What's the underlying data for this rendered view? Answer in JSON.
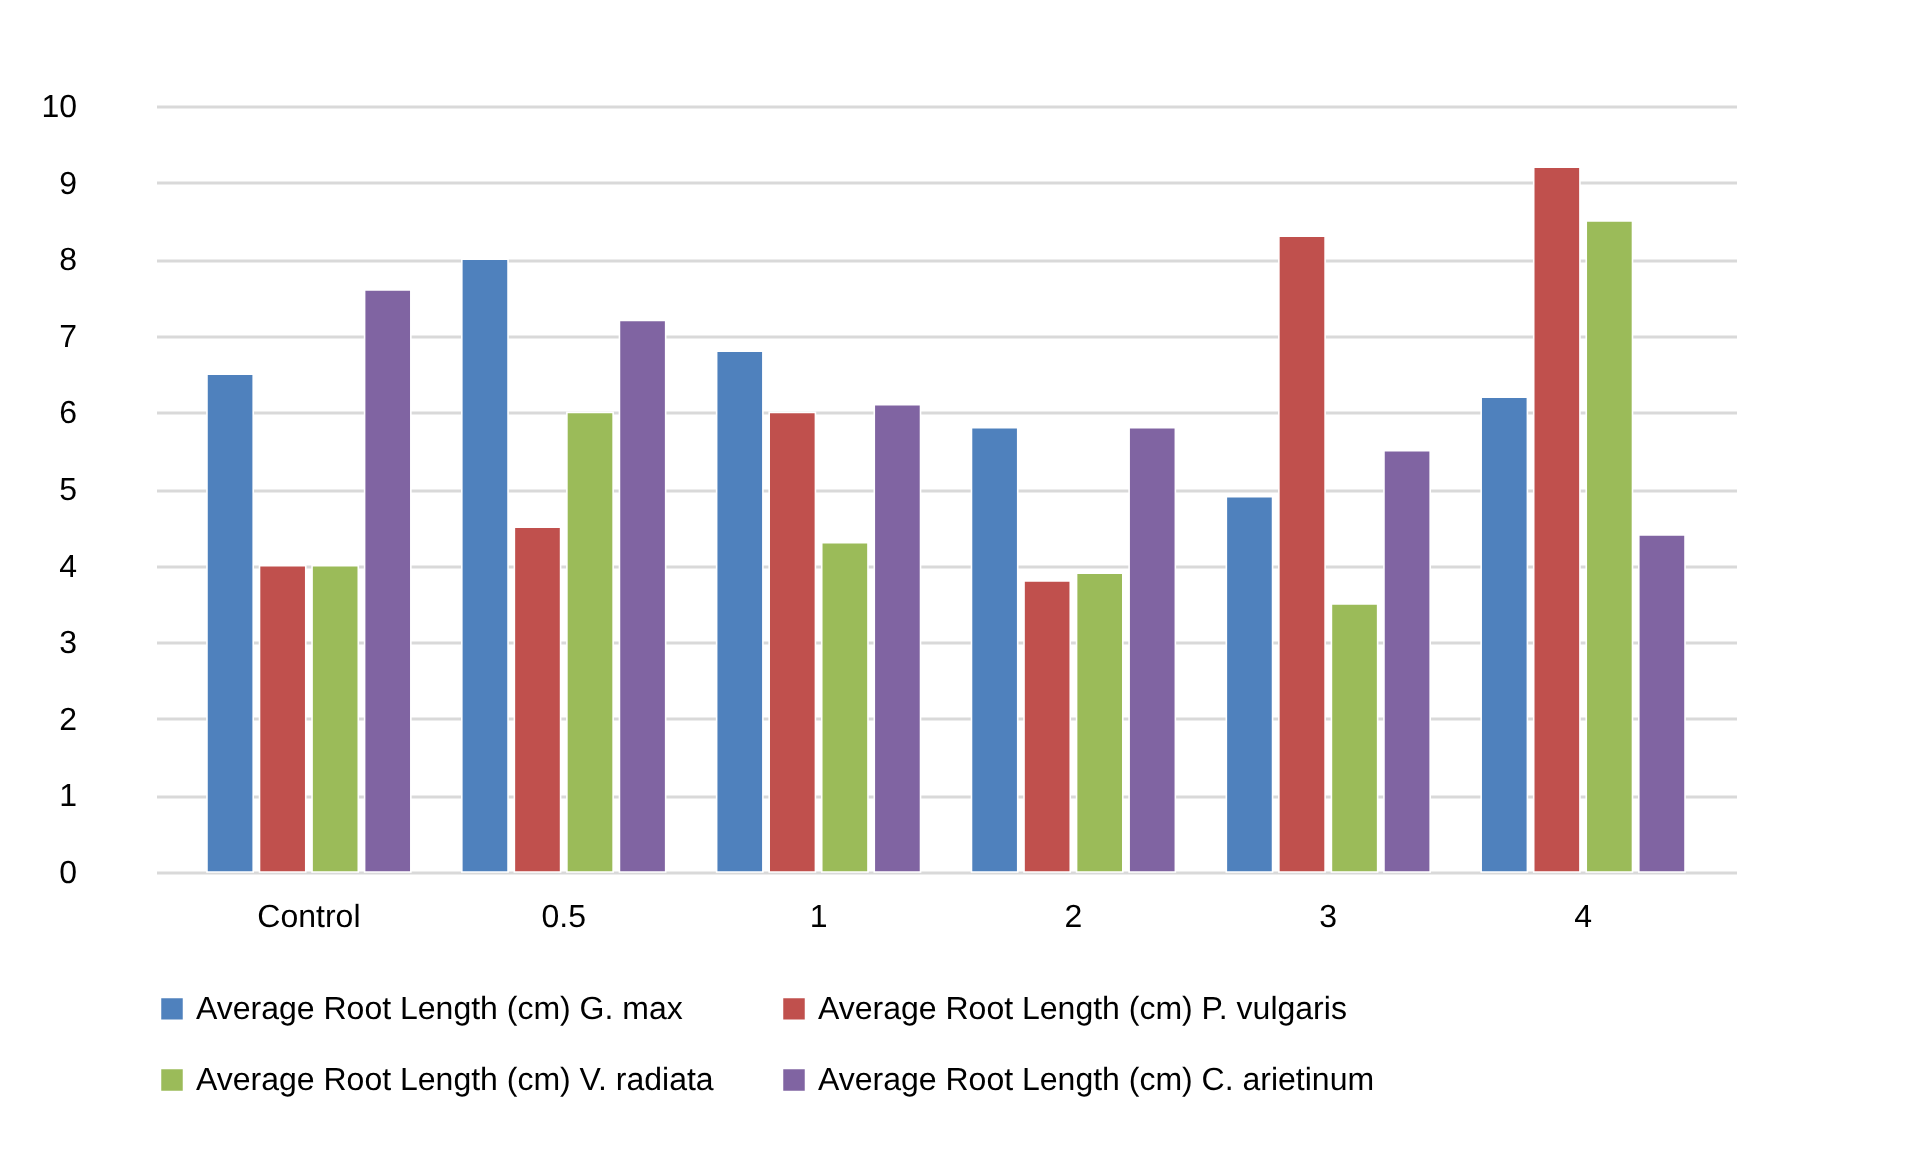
{
  "chart_data": {
    "type": "bar",
    "categories": [
      "Control",
      "0.5",
      "1",
      "2",
      "3",
      "4"
    ],
    "series": [
      {
        "name": "Average Root Length (cm) G. max",
        "color": "#4f81bd",
        "values": [
          6.5,
          8.0,
          6.8,
          5.8,
          4.9,
          6.2
        ]
      },
      {
        "name": "Average Root Length (cm) P. vulgaris",
        "color": "#c0504d",
        "values": [
          4.0,
          4.5,
          6.0,
          3.8,
          8.3,
          9.2
        ]
      },
      {
        "name": "Average Root Length (cm) V. radiata",
        "color": "#9bbb59",
        "values": [
          4.0,
          6.0,
          4.3,
          3.9,
          3.5,
          8.5
        ]
      },
      {
        "name": "Average Root Length (cm) C. arietinum",
        "color": "#8064a2",
        "values": [
          7.6,
          7.2,
          6.1,
          5.8,
          5.5,
          4.4
        ]
      }
    ],
    "ylim": [
      0,
      10
    ],
    "yticks": [
      0,
      1,
      2,
      3,
      4,
      5,
      6,
      7,
      8,
      9,
      10
    ],
    "grid": "y",
    "legend": "bottom"
  }
}
